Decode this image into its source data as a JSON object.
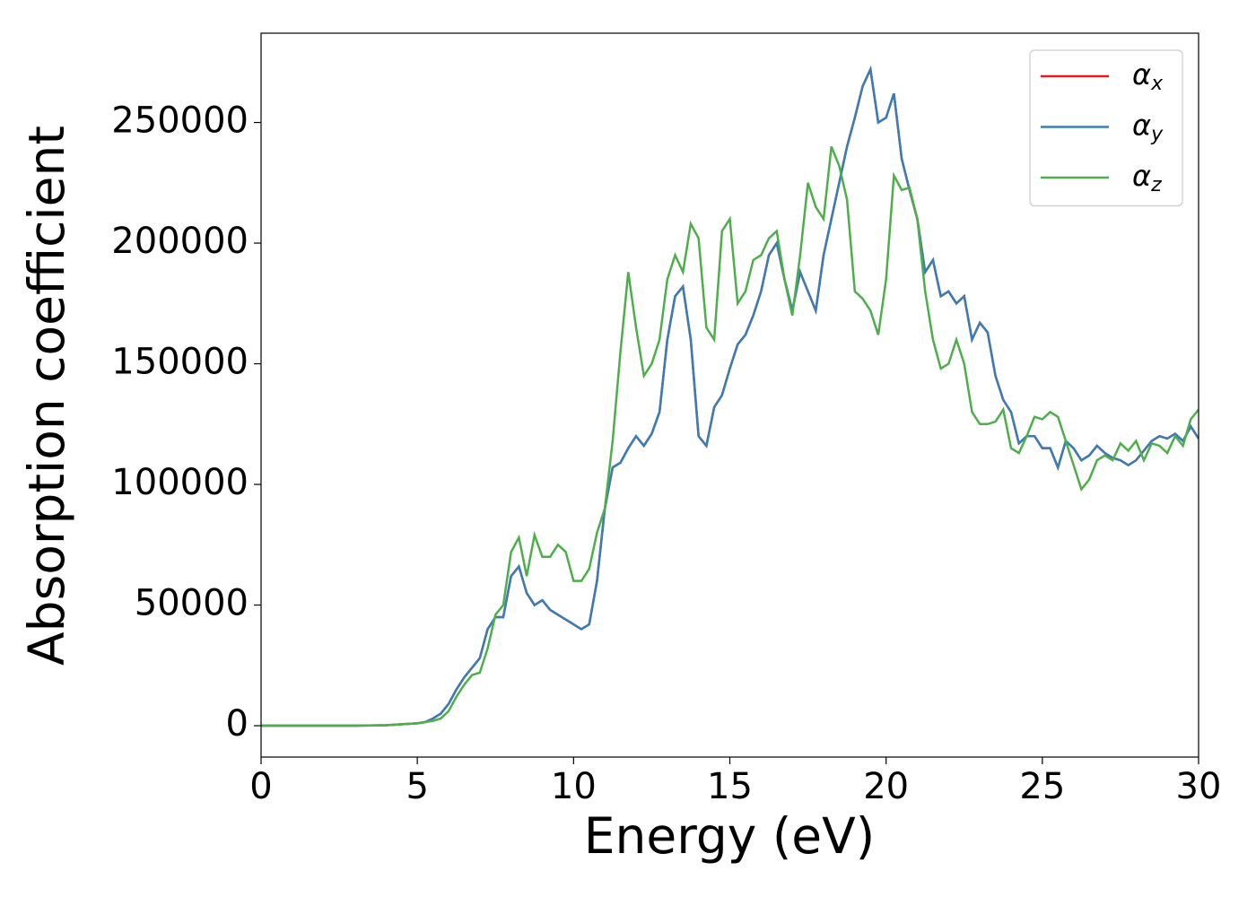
{
  "chart_data": {
    "type": "line",
    "xlabel": "Energy (eV)",
    "ylabel": "Absorption coefficient",
    "x": [
      0,
      1,
      2,
      3,
      4,
      5,
      5.25,
      5.5,
      5.75,
      6,
      6.25,
      6.5,
      6.75,
      7,
      7.25,
      7.5,
      7.75,
      8,
      8.25,
      8.5,
      8.75,
      9,
      9.25,
      9.5,
      9.75,
      10,
      10.25,
      10.5,
      10.75,
      11,
      11.25,
      11.5,
      11.75,
      12,
      12.25,
      12.5,
      12.75,
      13,
      13.25,
      13.5,
      13.75,
      14,
      14.25,
      14.5,
      14.75,
      15,
      15.25,
      15.5,
      15.75,
      16,
      16.25,
      16.5,
      16.75,
      17,
      17.25,
      17.5,
      17.75,
      18,
      18.25,
      18.5,
      18.75,
      19,
      19.25,
      19.5,
      19.75,
      20,
      20.25,
      20.5,
      20.75,
      21,
      21.25,
      21.5,
      21.75,
      22,
      22.25,
      22.5,
      22.75,
      23,
      23.25,
      23.5,
      23.75,
      24,
      24.25,
      24.5,
      24.75,
      25,
      25.25,
      25.5,
      25.75,
      26,
      26.25,
      26.5,
      26.75,
      27,
      27.25,
      27.5,
      27.75,
      28,
      28.25,
      28.5,
      28.75,
      29,
      29.25,
      29.5,
      29.75,
      30
    ],
    "series": [
      {
        "name": "αx",
        "color": "#e41a1c",
        "values": [
          0,
          0,
          0,
          0,
          200,
          1000,
          1500,
          3000,
          5000,
          9000,
          15000,
          20000,
          24000,
          28000,
          40000,
          45000,
          45000,
          62000,
          66000,
          55000,
          50000,
          52000,
          48000,
          46000,
          44000,
          42000,
          40000,
          42000,
          60000,
          90000,
          107000,
          109000,
          115000,
          120000,
          116000,
          121000,
          130000,
          160000,
          178000,
          182000,
          160000,
          120000,
          116000,
          132000,
          137000,
          148000,
          158000,
          162000,
          170000,
          180000,
          195000,
          200000,
          185000,
          172000,
          188000,
          180000,
          172000,
          195000,
          210000,
          225000,
          240000,
          252000,
          265000,
          272000,
          250000,
          252000,
          262000,
          235000,
          222000,
          210000,
          188000,
          193000,
          178000,
          180000,
          175000,
          178000,
          160000,
          167000,
          163000,
          145000,
          135000,
          130000,
          117000,
          120000,
          120000,
          115000,
          115000,
          107000,
          118000,
          115000,
          110000,
          112000,
          116000,
          113000,
          111000,
          110000,
          108000,
          110000,
          114000,
          118000,
          120000,
          119000,
          121000,
          118000,
          124000,
          119000
        ]
      },
      {
        "name": "αy",
        "color": "#377eb8",
        "values": [
          0,
          0,
          0,
          0,
          200,
          1000,
          1500,
          3000,
          5000,
          9000,
          15000,
          20000,
          24000,
          28000,
          40000,
          45000,
          45000,
          62000,
          66000,
          55000,
          50000,
          52000,
          48000,
          46000,
          44000,
          42000,
          40000,
          42000,
          60000,
          90000,
          107000,
          109000,
          115000,
          120000,
          116000,
          121000,
          130000,
          160000,
          178000,
          182000,
          160000,
          120000,
          116000,
          132000,
          137000,
          148000,
          158000,
          162000,
          170000,
          180000,
          195000,
          200000,
          185000,
          172000,
          188000,
          180000,
          172000,
          195000,
          210000,
          225000,
          240000,
          252000,
          265000,
          272000,
          250000,
          252000,
          262000,
          235000,
          222000,
          210000,
          188000,
          193000,
          178000,
          180000,
          175000,
          178000,
          160000,
          167000,
          163000,
          145000,
          135000,
          130000,
          117000,
          120000,
          120000,
          115000,
          115000,
          107000,
          118000,
          115000,
          110000,
          112000,
          116000,
          113000,
          111000,
          110000,
          108000,
          110000,
          114000,
          118000,
          120000,
          119000,
          121000,
          118000,
          124000,
          119000
        ]
      },
      {
        "name": "αz",
        "color": "#4daf4a",
        "values": [
          0,
          0,
          0,
          0,
          200,
          1000,
          1500,
          2000,
          3000,
          6000,
          12000,
          17000,
          21000,
          22000,
          32000,
          46000,
          50000,
          72000,
          78000,
          62000,
          79000,
          70000,
          70000,
          75000,
          72000,
          60000,
          60000,
          65000,
          80000,
          90000,
          118000,
          155000,
          188000,
          165000,
          145000,
          150000,
          160000,
          185000,
          195000,
          188000,
          208000,
          202000,
          165000,
          160000,
          205000,
          210000,
          175000,
          180000,
          193000,
          195000,
          202000,
          205000,
          185000,
          170000,
          195000,
          225000,
          215000,
          210000,
          240000,
          232000,
          218000,
          180000,
          177000,
          172000,
          162000,
          185000,
          228000,
          222000,
          223000,
          210000,
          180000,
          160000,
          148000,
          150000,
          160000,
          150000,
          130000,
          125000,
          125000,
          126000,
          131000,
          115000,
          113000,
          120000,
          128000,
          127000,
          130000,
          128000,
          118000,
          108000,
          98000,
          102000,
          110000,
          112000,
          110000,
          117000,
          114000,
          118000,
          110000,
          117000,
          116000,
          113000,
          120000,
          116000,
          127000,
          131000
        ]
      }
    ],
    "xlim": [
      0,
      30
    ],
    "xticks": [
      0,
      5,
      10,
      15,
      20,
      25,
      30
    ],
    "ylim": [
      -13000,
      287000
    ],
    "yticks": [
      0,
      50000,
      100000,
      150000,
      200000,
      250000
    ],
    "grid": false,
    "legend": "upper right"
  }
}
